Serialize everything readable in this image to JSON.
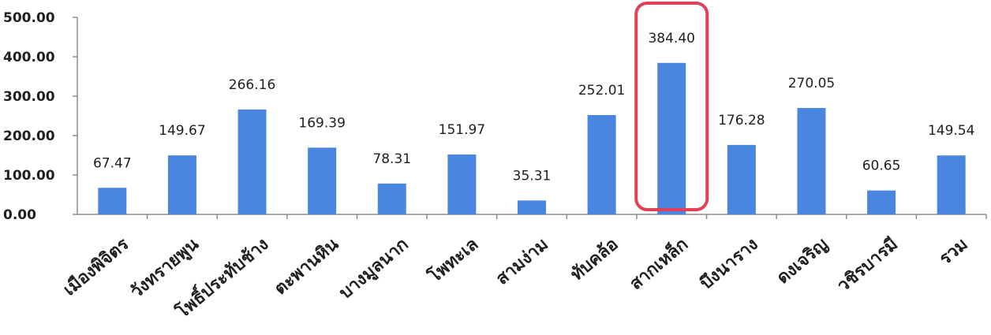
{
  "chart_data": {
    "type": "bar",
    "categories": [
      "เมืองพิจิตร",
      "วังทรายพูน",
      "โพธิ์ประทับช้าง",
      "ตะพานหิน",
      "บางมูลนาก",
      "โพทะเล",
      "สามง่าม",
      "ทับคล้อ",
      "สากเหล็ก",
      "บึงนาราง",
      "ดงเจริญ",
      "วชิรบารมี",
      "รวม"
    ],
    "values": [
      67.47,
      149.67,
      266.16,
      169.39,
      78.31,
      151.97,
      35.31,
      252.01,
      384.4,
      176.28,
      270.05,
      60.65,
      149.54
    ],
    "value_labels": [
      "67.47",
      "149.67",
      "266.16",
      "169.39",
      "78.31",
      "151.97",
      "35.31",
      "252.01",
      "384.40",
      "176.28",
      "270.05",
      "60.65",
      "149.54"
    ],
    "yticks": [
      "0.00",
      "100.00",
      "200.00",
      "300.00",
      "400.00",
      "500.00"
    ],
    "ylim": [
      0,
      500
    ],
    "title": "",
    "xlabel": "",
    "ylabel": "",
    "bar_color": "#4a86e0",
    "highlight_index": 8,
    "highlight_color": "#e0405a",
    "grid": false
  }
}
